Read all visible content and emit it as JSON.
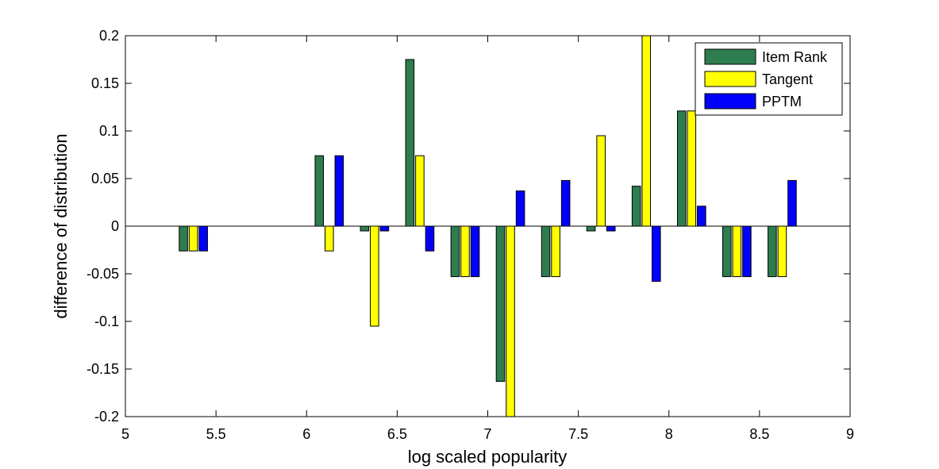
{
  "chart_data": {
    "type": "bar",
    "title": "",
    "xlabel": "log scaled popularity",
    "ylabel": "difference of distribution",
    "xlim": [
      5,
      9
    ],
    "ylim": [
      -0.2,
      0.2
    ],
    "xticks": [
      "5",
      "5.5",
      "6",
      "6.5",
      "7",
      "7.5",
      "8",
      "8.5",
      "9"
    ],
    "yticks": [
      "0.2",
      "0.15",
      "0.1",
      "0.05",
      "0",
      "-0.05",
      "-0.1",
      "-0.15",
      "-0.2"
    ],
    "x": [
      5.375,
      6.125,
      6.375,
      6.625,
      6.875,
      7.125,
      7.375,
      7.625,
      7.875,
      8.125,
      8.375,
      8.625
    ],
    "series": [
      {
        "name": "Item Rank",
        "color": "#2e7d4f",
        "values": [
          -0.026,
          0.074,
          -0.005,
          0.175,
          -0.053,
          -0.163,
          -0.053,
          -0.005,
          0.042,
          0.121,
          -0.053,
          -0.053
        ]
      },
      {
        "name": "Tangent",
        "color": "#ffff00",
        "values": [
          -0.026,
          -0.026,
          -0.105,
          0.074,
          -0.053,
          -0.21,
          -0.053,
          0.095,
          0.21,
          0.121,
          -0.053,
          -0.053
        ]
      },
      {
        "name": "PPTM",
        "color": "#0000ff",
        "values": [
          -0.026,
          0.074,
          -0.005,
          -0.026,
          -0.053,
          0.037,
          0.048,
          -0.005,
          -0.058,
          0.021,
          -0.053,
          0.048
        ]
      }
    ],
    "legend_position": "top-right",
    "grid": false
  }
}
